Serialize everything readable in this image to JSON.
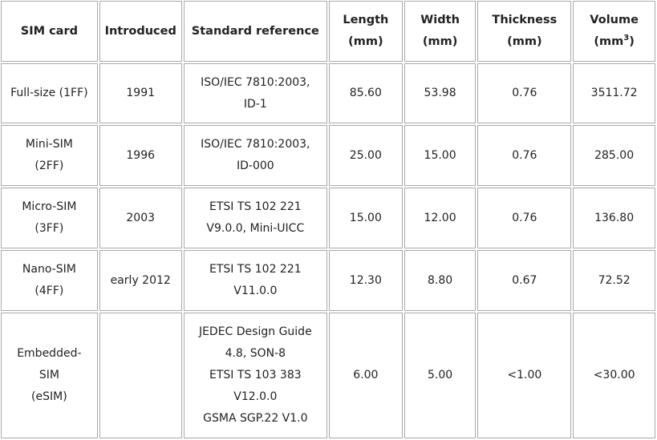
{
  "headers": {
    "sim_card": "SIM card",
    "introduced": "Introduced",
    "standard_reference": "Standard reference",
    "length": "Length",
    "length_unit": "(mm)",
    "width": "Width",
    "width_unit": "(mm)",
    "thickness": "Thickness",
    "thickness_unit": "(mm)",
    "volume": "Volume",
    "volume_unit_open": "(mm",
    "volume_unit_exp": "3",
    "volume_unit_close": ")"
  },
  "rows": [
    {
      "sim_card": [
        "Full-size (1FF)"
      ],
      "introduced": "1991",
      "standard_reference": [
        "ISO/IEC 7810:2003,",
        "ID-1"
      ],
      "length": "85.60",
      "width": "53.98",
      "thickness": "0.76",
      "volume": "3511.72"
    },
    {
      "sim_card": [
        "Mini-SIM",
        "(2FF)"
      ],
      "introduced": "1996",
      "standard_reference": [
        "ISO/IEC 7810:2003,",
        "ID-000"
      ],
      "length": "25.00",
      "width": "15.00",
      "thickness": "0.76",
      "volume": "285.00"
    },
    {
      "sim_card": [
        "Micro-SIM",
        "(3FF)"
      ],
      "introduced": "2003",
      "standard_reference": [
        "ETSI TS 102 221",
        "V9.0.0, Mini-UICC"
      ],
      "length": "15.00",
      "width": "12.00",
      "thickness": "0.76",
      "volume": "136.80"
    },
    {
      "sim_card": [
        "Nano-SIM",
        "(4FF)"
      ],
      "introduced": "early 2012",
      "standard_reference": [
        "ETSI TS 102 221",
        "V11.0.0"
      ],
      "length": "12.30",
      "width": "8.80",
      "thickness": "0.67",
      "volume": "72.52"
    },
    {
      "sim_card": [
        "Embedded-",
        "SIM",
        "(eSIM)"
      ],
      "introduced": "",
      "standard_reference": [
        "JEDEC Design Guide",
        "4.8, SON-8",
        "ETSI TS 103 383",
        "V12.0.0",
        "GSMA SGP.22 V1.0"
      ],
      "length": "6.00",
      "width": "5.00",
      "thickness": "<1.00",
      "volume": "<30.00"
    }
  ]
}
